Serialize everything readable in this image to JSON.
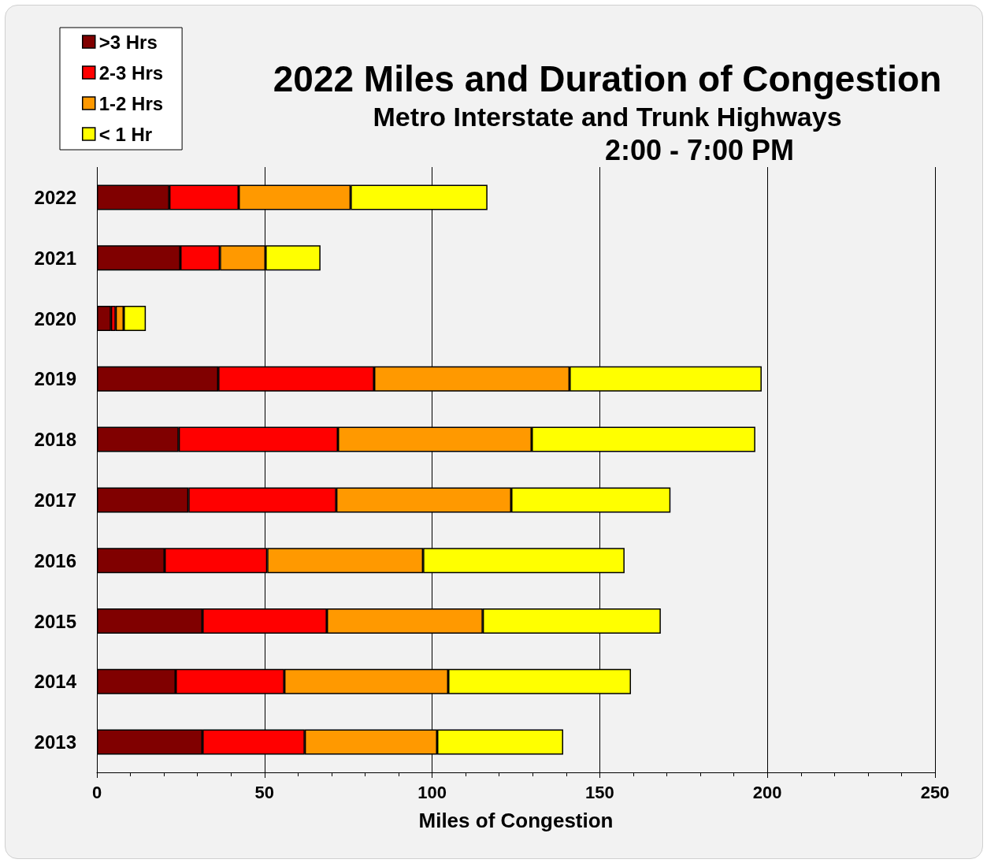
{
  "chart_data": {
    "type": "bar",
    "orientation": "horizontal",
    "stacked": true,
    "title": "2022 Miles and Duration of Congestion",
    "subtitle": "Metro Interstate and Trunk Highways",
    "annotations": [
      "2:00 - 7:00 PM"
    ],
    "xlabel": "Miles of Congestion",
    "categories": [
      "2022",
      "2021",
      "2020",
      "2019",
      "2018",
      "2017",
      "2016",
      "2015",
      "2014",
      "2013"
    ],
    "series": [
      {
        "name": ">3 Hrs",
        "color": "#800000",
        "values": [
          21.6,
          24.9,
          4.2,
          36.2,
          24.4,
          27.3,
          20.2,
          31.5,
          23.5,
          31.5
        ]
      },
      {
        "name": "2-3 Hrs",
        "color": "#ff0000",
        "values": [
          20.7,
          11.8,
          1.4,
          46.5,
          47.5,
          44.1,
          30.6,
          37.1,
          32.4,
          30.5
        ]
      },
      {
        "name": "1-2 Hrs",
        "color": "#ff9900",
        "values": [
          33.4,
          13.6,
          2.4,
          58.3,
          57.8,
          52.2,
          46.5,
          46.5,
          48.9,
          39.5
        ]
      },
      {
        "name": "< 1 Hr",
        "color": "#ffff00",
        "values": [
          40.8,
          16.4,
          6.6,
          57.3,
          66.7,
          47.5,
          60.1,
          53.1,
          54.5,
          37.6
        ]
      }
    ],
    "xlim": [
      0,
      250
    ],
    "xticks": [
      0,
      50,
      100,
      150,
      200,
      250
    ],
    "grid": "x",
    "legend": "top left"
  }
}
